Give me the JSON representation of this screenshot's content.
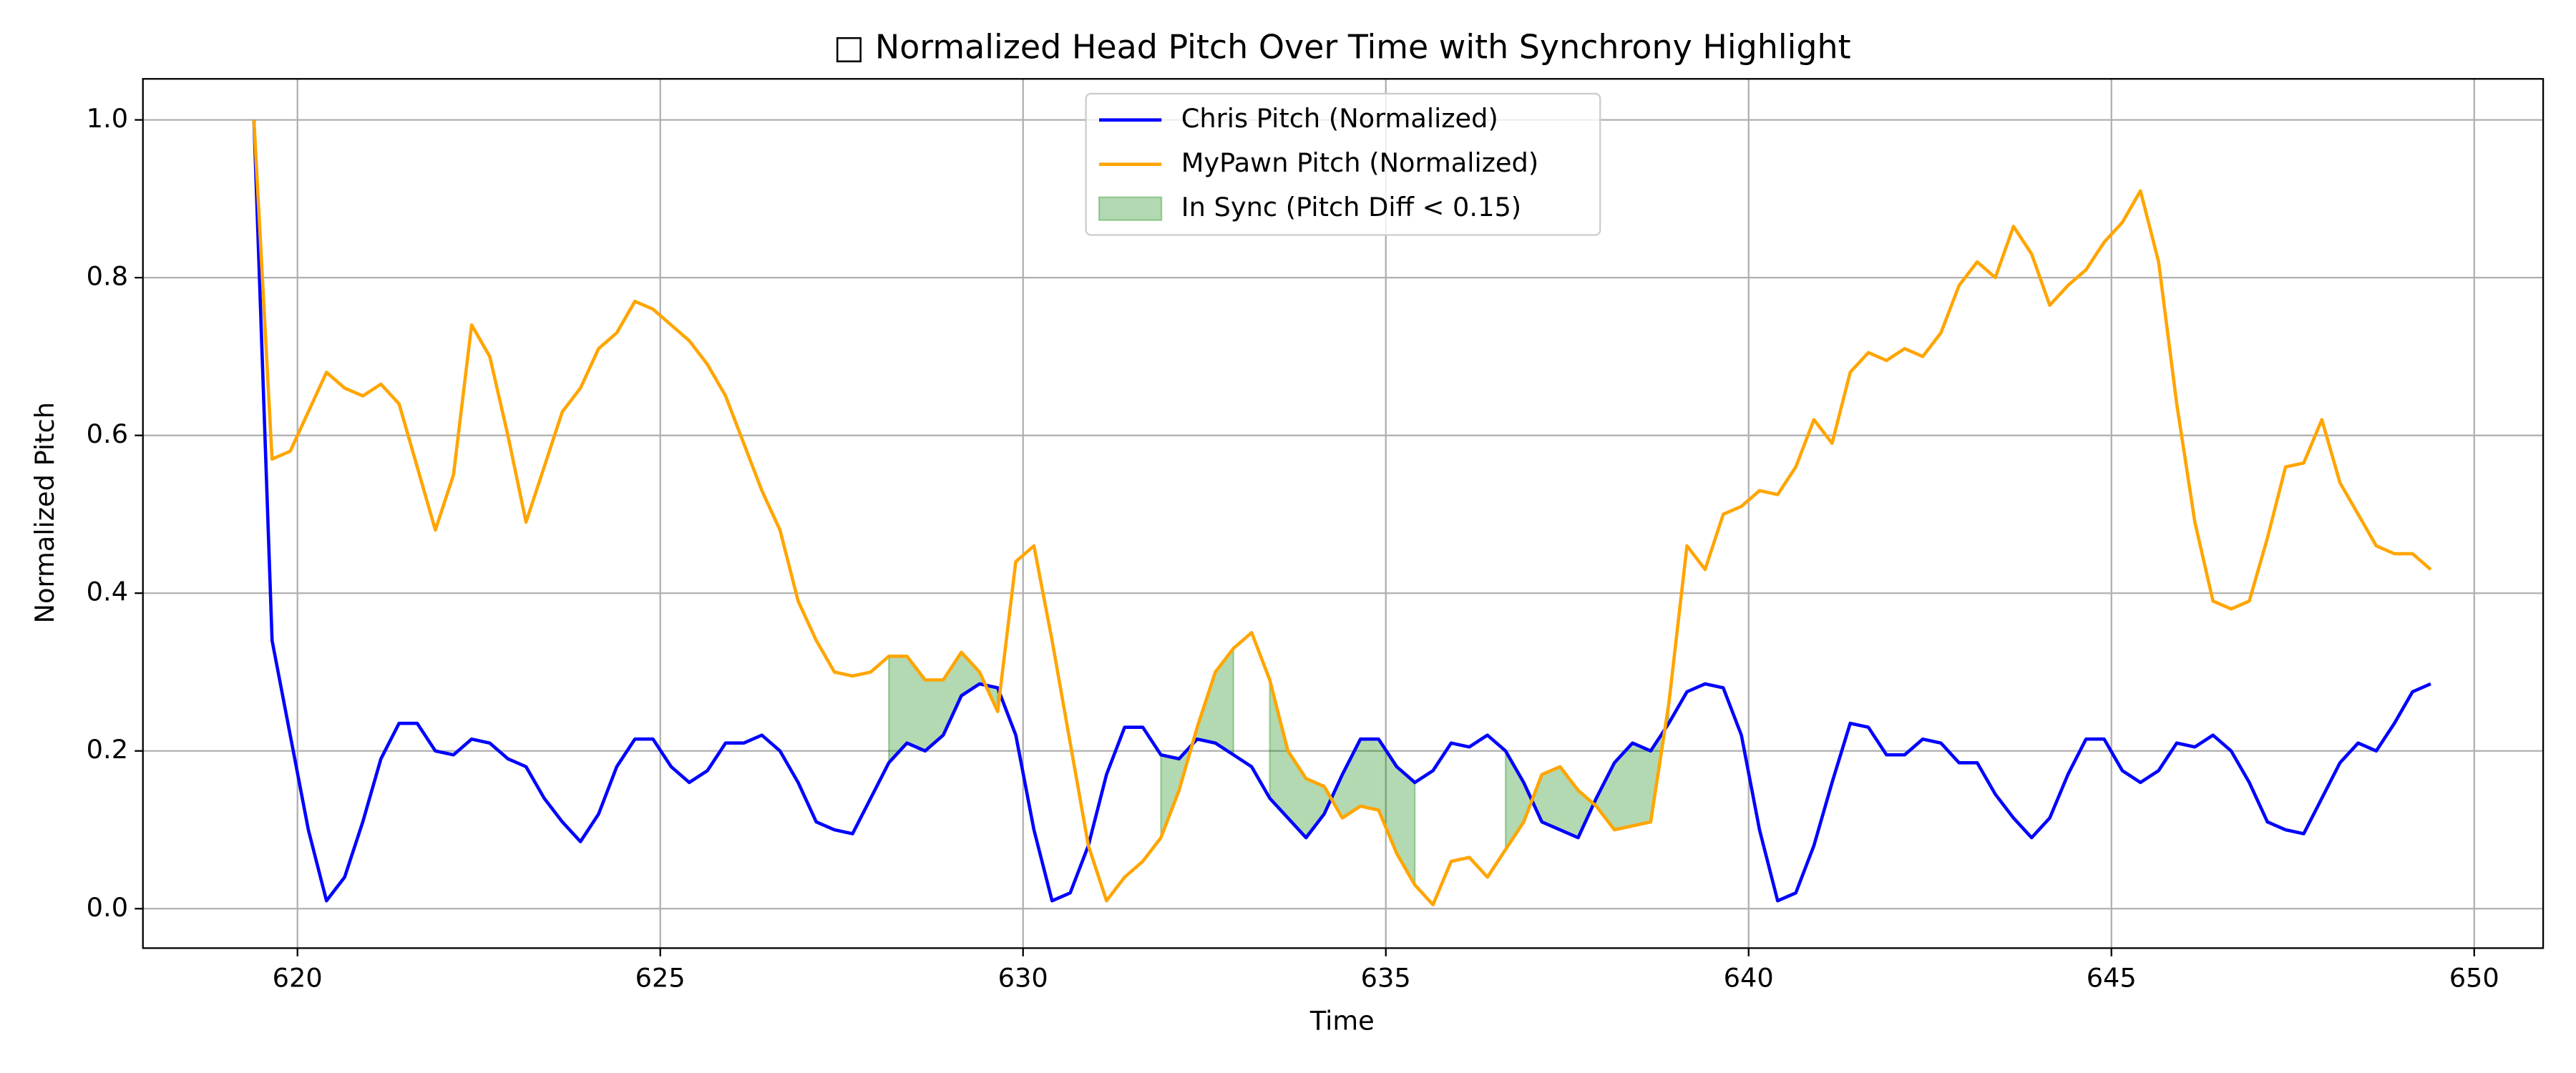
{
  "chart_data": {
    "type": "line",
    "title": "□ Normalized Head Pitch Over Time with Synchrony Highlight",
    "xlabel": "Time",
    "ylabel": "Normalized Pitch",
    "x": [
      619.4,
      619.65,
      619.9,
      620.15,
      620.4,
      620.65,
      620.9,
      621.15,
      621.4,
      621.65,
      621.9,
      622.15,
      622.4,
      622.65,
      622.9,
      623.15,
      623.4,
      623.65,
      623.9,
      624.15,
      624.4,
      624.65,
      624.9,
      625.15,
      625.4,
      625.65,
      625.9,
      626.15,
      626.4,
      626.65,
      626.9,
      627.15,
      627.4,
      627.65,
      627.9,
      628.15,
      628.4,
      628.65,
      628.9,
      629.15,
      629.4,
      629.65,
      629.9,
      630.15,
      630.4,
      630.65,
      630.9,
      631.15,
      631.4,
      631.65,
      631.9,
      632.15,
      632.4,
      632.65,
      632.9,
      633.15,
      633.4,
      633.65,
      633.9,
      634.15,
      634.4,
      634.65,
      634.9,
      635.15,
      635.4,
      635.65,
      635.9,
      636.15,
      636.4,
      636.65,
      636.9,
      637.15,
      637.4,
      637.65,
      637.9,
      638.15,
      638.4,
      638.65,
      638.9,
      639.15,
      639.4,
      639.65,
      639.9,
      640.15,
      640.4,
      640.65,
      640.9,
      641.15,
      641.4,
      641.65,
      641.9,
      642.15,
      642.4,
      642.65,
      642.9,
      643.15,
      643.4,
      643.65,
      643.9,
      644.15,
      644.4,
      644.65,
      644.9,
      645.15,
      645.4,
      645.65,
      645.9,
      646.15,
      646.4,
      646.65,
      646.9,
      647.15,
      647.4,
      647.65,
      647.9,
      648.15,
      648.4,
      648.65,
      648.9,
      649.15,
      649.4
    ],
    "series": [
      {
        "name": "Chris Pitch (Normalized)",
        "color": "#0000ff",
        "values": [
          1.0,
          0.34,
          0.22,
          0.1,
          0.01,
          0.04,
          0.11,
          0.19,
          0.235,
          0.235,
          0.2,
          0.195,
          0.215,
          0.21,
          0.19,
          0.18,
          0.14,
          0.11,
          0.085,
          0.12,
          0.18,
          0.215,
          0.215,
          0.18,
          0.16,
          0.175,
          0.21,
          0.21,
          0.22,
          0.2,
          0.16,
          0.11,
          0.1,
          0.095,
          0.14,
          0.185,
          0.21,
          0.2,
          0.22,
          0.27,
          0.285,
          0.28,
          0.22,
          0.1,
          0.01,
          0.02,
          0.08,
          0.17,
          0.23,
          0.23,
          0.195,
          0.19,
          0.215,
          0.21,
          0.195,
          0.18,
          0.14,
          0.115,
          0.09,
          0.12,
          0.17,
          0.215,
          0.215,
          0.18,
          0.16,
          0.175,
          0.21,
          0.205,
          0.22,
          0.2,
          0.16,
          0.11,
          0.1,
          0.09,
          0.14,
          0.185,
          0.21,
          0.2,
          0.235,
          0.275,
          0.285,
          0.28,
          0.22,
          0.1,
          0.01,
          0.02,
          0.08,
          0.16,
          0.235,
          0.23,
          0.195,
          0.195,
          0.215,
          0.21,
          0.185,
          0.185,
          0.145,
          0.115,
          0.09,
          0.115,
          0.17,
          0.215,
          0.215,
          0.175,
          0.16,
          0.175,
          0.21,
          0.205,
          0.22,
          0.2,
          0.16,
          0.11,
          0.1,
          0.095,
          0.14,
          0.185,
          0.21,
          0.2,
          0.235,
          0.275,
          0.285
        ]
      },
      {
        "name": "MyPawn Pitch (Normalized)",
        "color": "#ffa500",
        "values": [
          1.0,
          0.57,
          0.58,
          0.63,
          0.68,
          0.66,
          0.65,
          0.665,
          0.64,
          0.56,
          0.48,
          0.55,
          0.74,
          0.7,
          0.6,
          0.49,
          0.56,
          0.63,
          0.66,
          0.71,
          0.73,
          0.77,
          0.76,
          0.74,
          0.72,
          0.69,
          0.65,
          0.59,
          0.53,
          0.48,
          0.39,
          0.34,
          0.3,
          0.295,
          0.3,
          0.32,
          0.32,
          0.29,
          0.29,
          0.325,
          0.3,
          0.25,
          0.44,
          0.46,
          0.34,
          0.21,
          0.08,
          0.01,
          0.04,
          0.06,
          0.09,
          0.15,
          0.23,
          0.3,
          0.33,
          0.35,
          0.29,
          0.2,
          0.165,
          0.155,
          0.115,
          0.13,
          0.125,
          0.07,
          0.03,
          0.005,
          0.06,
          0.065,
          0.04,
          0.075,
          0.11,
          0.17,
          0.18,
          0.15,
          0.13,
          0.1,
          0.105,
          0.11,
          0.26,
          0.46,
          0.43,
          0.5,
          0.51,
          0.53,
          0.525,
          0.56,
          0.62,
          0.59,
          0.68,
          0.705,
          0.695,
          0.71,
          0.7,
          0.73,
          0.79,
          0.82,
          0.8,
          0.865,
          0.83,
          0.765,
          0.79,
          0.81,
          0.845,
          0.87,
          0.91,
          0.82,
          0.64,
          0.49,
          0.39,
          0.38,
          0.39,
          0.47,
          0.56,
          0.565,
          0.62,
          0.54,
          0.5,
          0.46,
          0.45,
          0.45,
          0.43
        ]
      }
    ],
    "sync": {
      "name": "In Sync (Pitch Diff < 0.15)",
      "threshold": 0.15,
      "color": "#008000"
    },
    "xlim": [
      617.87,
      650.95
    ],
    "ylim": [
      -0.05,
      1.052
    ],
    "xticks": [
      620,
      625,
      630,
      635,
      640,
      645,
      650
    ],
    "yticks": [
      {
        "value": 0,
        "label": "0.0"
      },
      {
        "value": 0.2,
        "label": "0.2"
      },
      {
        "value": 0.4,
        "label": "0.4"
      },
      {
        "value": 0.6,
        "label": "0.6"
      },
      {
        "value": 0.8,
        "label": "0.8"
      },
      {
        "value": 1,
        "label": "1.0"
      }
    ],
    "grid": true,
    "legend": "upper center"
  }
}
